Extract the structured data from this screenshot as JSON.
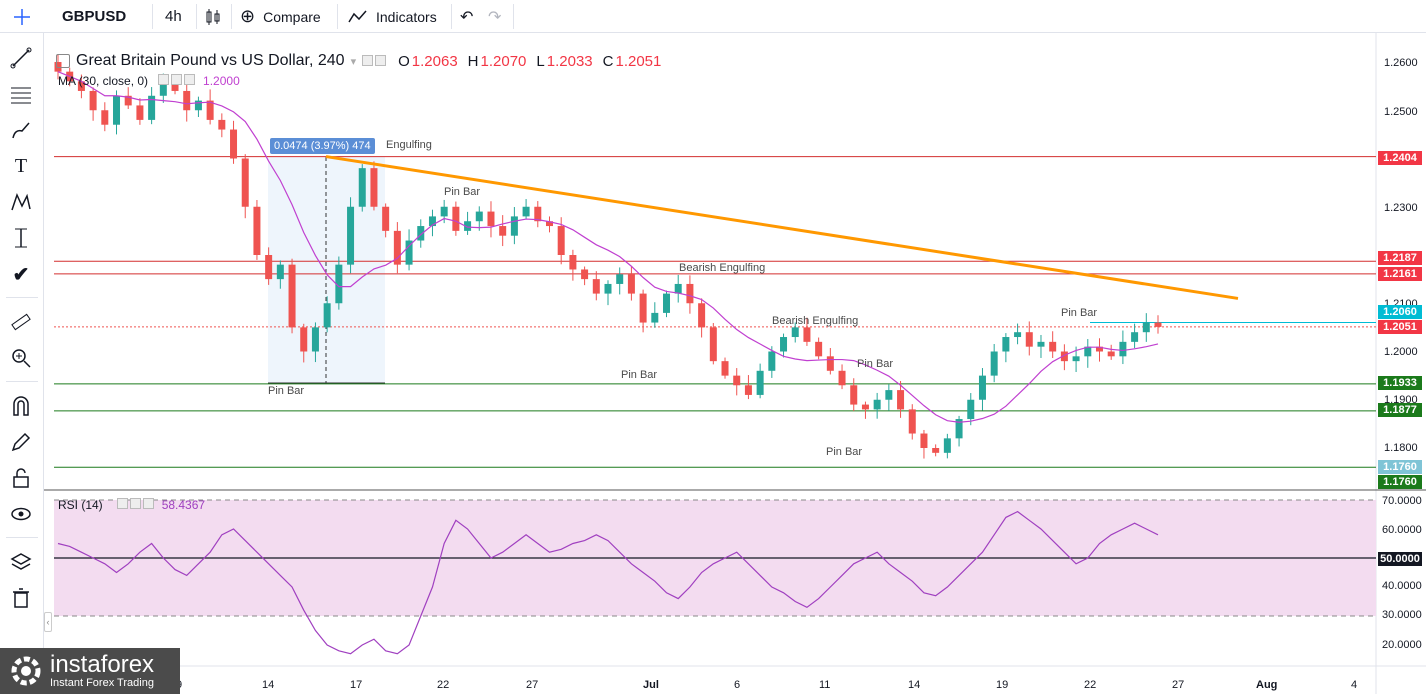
{
  "toolbar": {
    "symbol": "GBPUSD",
    "interval": "4h",
    "compare_label": "Compare",
    "indicators_label": "Indicators"
  },
  "legend": {
    "title": "Great Britain Pound vs US Dollar, 240",
    "open_label": "O",
    "open": "1.2063",
    "high_label": "H",
    "high": "1.2070",
    "low_label": "L",
    "low": "1.2033",
    "close_label": "C",
    "close": "1.2051",
    "ma_label": "MA (30, close, 0)",
    "ma_value": "1.2000",
    "rsi_label": "RSI (14)",
    "rsi_value": "58.4367"
  },
  "measure_label": "0.0474 (3.97%) 474",
  "pattern_labels": [
    {
      "text": "Engulfing"
    },
    {
      "text": "Pin Bar"
    },
    {
      "text": "Bearish Engulfing"
    },
    {
      "text": "Bearish Engulfing"
    },
    {
      "text": "Pin Bar"
    },
    {
      "text": "Pin Bar"
    },
    {
      "text": "Pin Bar"
    },
    {
      "text": "Pin Bar"
    },
    {
      "text": "Pin Bar"
    }
  ],
  "price_tags": [
    {
      "text": "1.2404",
      "color": "#f23645"
    },
    {
      "text": "1.2187",
      "color": "#f23645"
    },
    {
      "text": "1.2161",
      "color": "#f23645"
    },
    {
      "text": "1.2060",
      "color": "#00bcd4"
    },
    {
      "text": "1.2051",
      "color": "#f23645"
    },
    {
      "text": "1.1933",
      "color": "#1b7a1b"
    },
    {
      "text": "1.1877",
      "color": "#1b7a1b"
    },
    {
      "text": "1.1760",
      "color": "#7fc4d6"
    },
    {
      "text": "1.1760",
      "color": "#1b7a1b"
    },
    {
      "text": "50.0000",
      "color": "#131722"
    }
  ],
  "price_axis_labels": [
    "1.2600",
    "1.2500",
    "1.2400",
    "1.2300",
    "1.2200",
    "1.2100",
    "1.2000",
    "1.1900",
    "1.1800"
  ],
  "rsi_axis_labels": [
    "70.0000",
    "60.0000",
    "40.0000",
    "30.0000",
    "20.0000"
  ],
  "time_axis_labels": [
    "9",
    "14",
    "17",
    "22",
    "27",
    "Jul",
    "6",
    "11",
    "14",
    "19",
    "22",
    "27",
    "Aug",
    "4"
  ],
  "logo": {
    "brand": "instaforex",
    "tagline": "Instant Forex Trading"
  },
  "colors": {
    "up": "#26a69a",
    "down": "#ef5350",
    "ma": "#c040d0",
    "trendline": "#ff9800",
    "resistance": "#d32f2f",
    "support": "#1b7a1b",
    "rsi_line": "#a040c0",
    "rsi_band": "#f3dcf0"
  },
  "chart_data": [
    {
      "type": "candlestick",
      "title": "Great Britain Pound vs US Dollar, 240",
      "ylim": [
        1.1715,
        1.265
      ],
      "x": [
        "9",
        "14",
        "17",
        "22",
        "27",
        "Jul",
        "6",
        "11",
        "14",
        "19",
        "22",
        "27",
        "Aug",
        "4"
      ],
      "horizontal_levels": [
        1.2404,
        1.2187,
        1.2161,
        1.206,
        1.2051,
        1.1933,
        1.1877,
        1.176
      ],
      "trendline": [
        [
          1.2404,
          "17"
        ],
        [
          1.211,
          "Jul 25"
        ]
      ],
      "close_path": [
        1.258,
        1.256,
        1.254,
        1.25,
        1.247,
        1.253,
        1.251,
        1.248,
        1.253,
        1.256,
        1.254,
        1.25,
        1.252,
        1.248,
        1.246,
        1.24,
        1.23,
        1.22,
        1.215,
        1.218,
        1.205,
        1.2,
        1.205,
        1.21,
        1.218,
        1.23,
        1.238,
        1.23,
        1.225,
        1.218,
        1.223,
        1.226,
        1.228,
        1.23,
        1.225,
        1.227,
        1.229,
        1.226,
        1.224,
        1.228,
        1.23,
        1.227,
        1.226,
        1.22,
        1.217,
        1.215,
        1.212,
        1.214,
        1.216,
        1.212,
        1.206,
        1.208,
        1.212,
        1.214,
        1.21,
        1.205,
        1.198,
        1.195,
        1.193,
        1.191,
        1.196,
        1.2,
        1.203,
        1.205,
        1.202,
        1.199,
        1.196,
        1.193,
        1.189,
        1.188,
        1.19,
        1.192,
        1.188,
        1.183,
        1.18,
        1.179,
        1.182,
        1.186,
        1.19,
        1.195,
        1.2,
        1.203,
        1.204,
        1.201,
        1.202,
        1.2,
        1.198,
        1.199,
        1.201,
        1.2,
        1.199,
        1.202,
        1.204,
        1.206,
        1.2051
      ],
      "ma30_last": 1.2
    },
    {
      "type": "line",
      "title": "RSI (14)",
      "ylim": [
        15,
        72
      ],
      "bands": [
        30,
        70
      ],
      "midline": 50,
      "last_value": 58.4367,
      "values": [
        55,
        54,
        52,
        50,
        48,
        45,
        48,
        52,
        55,
        50,
        46,
        44,
        48,
        52,
        58,
        60,
        56,
        52,
        48,
        44,
        40,
        32,
        25,
        20,
        18,
        17,
        20,
        22,
        18,
        17,
        20,
        30,
        40,
        55,
        63,
        60,
        55,
        50,
        52,
        55,
        58,
        55,
        52,
        53,
        55,
        56,
        58,
        56,
        52,
        48,
        45,
        42,
        38,
        36,
        40,
        45,
        48,
        50,
        52,
        48,
        44,
        40,
        38,
        35,
        33,
        36,
        40,
        44,
        48,
        50,
        52,
        48,
        45,
        42,
        38,
        37,
        40,
        44,
        48,
        52,
        58,
        64,
        66,
        63,
        60,
        56,
        52,
        48,
        50,
        55,
        58,
        60,
        62,
        60,
        58
      ]
    }
  ]
}
